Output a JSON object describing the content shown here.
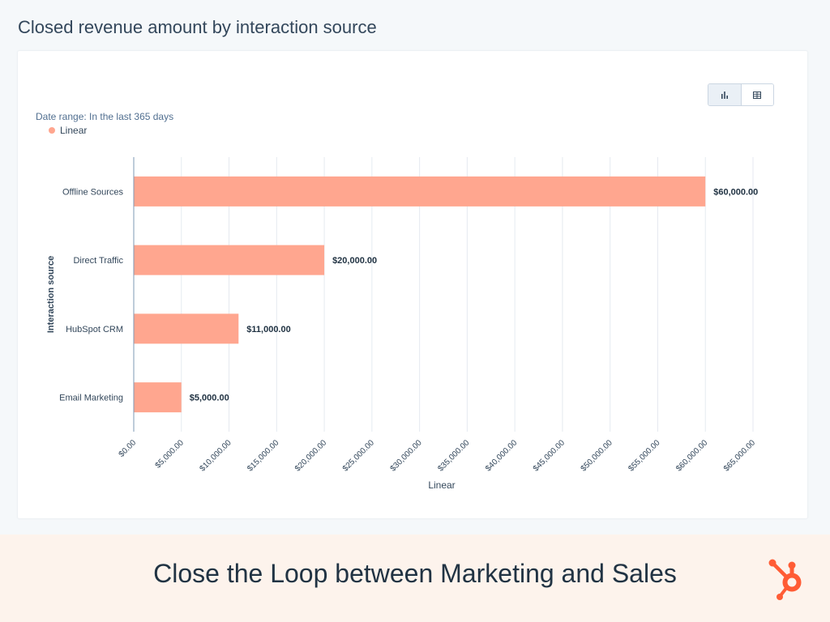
{
  "page": {
    "title": "Closed revenue amount by interaction source"
  },
  "card": {
    "date_range": "Date range: In the last 365 days",
    "toggle": {
      "chart_icon": "bar-chart-icon",
      "table_icon": "table-icon",
      "selected": "chart"
    }
  },
  "colors": {
    "bar": "#ffa68f",
    "accent": "#ff7a59",
    "text": "#33475b",
    "grid": "#e5eaf0"
  },
  "chart_data": {
    "type": "bar",
    "orientation": "horizontal",
    "categories": [
      "Offline Sources",
      "Direct Traffic",
      "HubSpot CRM",
      "Email Marketing"
    ],
    "series": [
      {
        "name": "Linear",
        "values": [
          60000,
          20000,
          11000,
          5000
        ]
      }
    ],
    "data_labels": [
      "$60,000.00",
      "$20,000.00",
      "$11,000.00",
      "$5,000.00"
    ],
    "xlabel": "Linear",
    "ylabel": "Interaction source",
    "xlim": [
      0,
      65000
    ],
    "x_ticks": [
      0,
      5000,
      10000,
      15000,
      20000,
      25000,
      30000,
      35000,
      40000,
      45000,
      50000,
      55000,
      60000,
      65000
    ],
    "x_tick_labels": [
      "$0.00",
      "$5,000.00",
      "$10,000.00",
      "$15,000.00",
      "$20,000.00",
      "$25,000.00",
      "$30,000.00",
      "$35,000.00",
      "$40,000.00",
      "$45,000.00",
      "$50,000.00",
      "$55,000.00",
      "$60,000.00",
      "$65,000.00"
    ],
    "grid": "vertical",
    "legend_position": "top-left"
  },
  "banner": {
    "text": "Close the Loop between Marketing and Sales",
    "logo_icon": "hubspot-sprocket-icon"
  }
}
